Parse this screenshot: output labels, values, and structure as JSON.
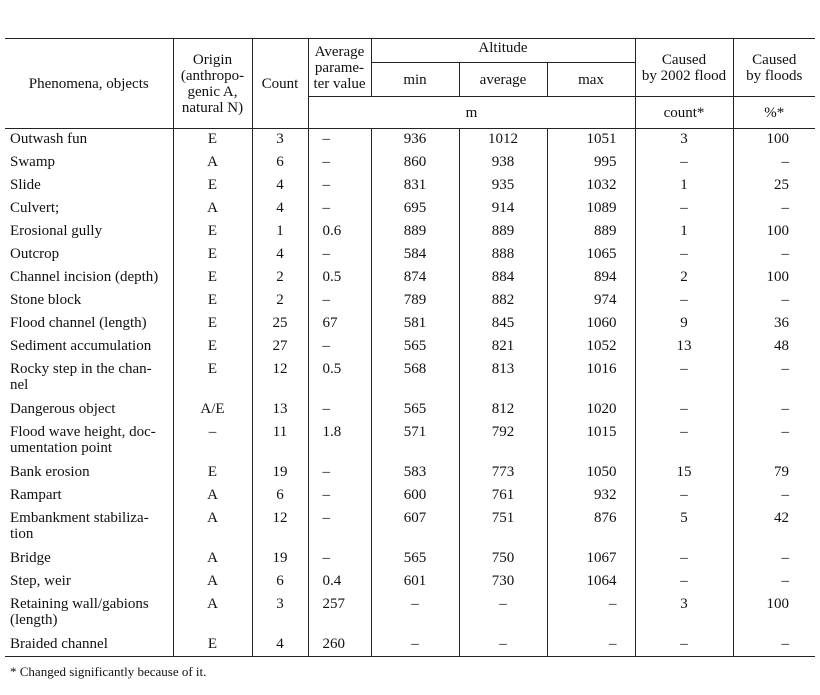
{
  "table": {
    "header": {
      "phenomena": "Phenomena, objects",
      "origin": "Origin\n(anthropo-\ngenic A,\nnatural N)",
      "count": "Count",
      "average_param": "Average\nparame-\nter value",
      "altitude": "Altitude",
      "min": "min",
      "average": "average",
      "max": "max",
      "unit_m": "m",
      "caused_2002": "Caused\nby 2002 flood",
      "caused_floods": "Caused\nby floods",
      "unit_count": "count*",
      "unit_percent": "%*"
    },
    "rows": [
      [
        "Outwash fun",
        "E",
        3,
        "–",
        936,
        1012,
        1051,
        3,
        100
      ],
      [
        "Swamp",
        "A",
        6,
        "–",
        860,
        938,
        995,
        "–",
        "–"
      ],
      [
        "Slide",
        "E",
        4,
        "–",
        831,
        935,
        1032,
        1,
        25
      ],
      [
        "Culvert;",
        "A",
        4,
        "–",
        695,
        914,
        1089,
        "–",
        "–"
      ],
      [
        "Erosional gully",
        "E",
        1,
        0.6,
        889,
        889,
        889,
        1,
        100
      ],
      [
        "Outcrop",
        "E",
        4,
        "–",
        584,
        888,
        1065,
        "–",
        "–"
      ],
      [
        "Channel incision (depth)",
        "E",
        2,
        0.5,
        874,
        884,
        894,
        2,
        100
      ],
      [
        "Stone block",
        "E",
        2,
        "–",
        789,
        882,
        974,
        "–",
        "–"
      ],
      [
        "Flood channel (length)",
        "E",
        25,
        67,
        581,
        845,
        1060,
        9,
        36
      ],
      [
        "Sediment accumulation",
        "E",
        27,
        "–",
        565,
        821,
        1052,
        13,
        48
      ],
      [
        "Rocky step in the chan-\nnel",
        "E",
        12,
        0.5,
        568,
        813,
        1016,
        "–",
        "–"
      ],
      [
        "Dangerous object",
        "A/E",
        13,
        "–",
        565,
        812,
        1020,
        "–",
        "–"
      ],
      [
        "Flood wave height, doc-\numentation point",
        "–",
        11,
        1.8,
        571,
        792,
        1015,
        "–",
        "–"
      ],
      [
        "Bank erosion",
        "E",
        19,
        "–",
        583,
        773,
        1050,
        15,
        79
      ],
      [
        "Rampart",
        "A",
        6,
        "–",
        600,
        761,
        932,
        "–",
        "–"
      ],
      [
        "Embankment stabiliza-\ntion",
        "A",
        12,
        "–",
        607,
        751,
        876,
        5,
        42
      ],
      [
        "Bridge",
        "A",
        19,
        "–",
        565,
        750,
        1067,
        "–",
        "–"
      ],
      [
        "Step, weir",
        "A",
        6,
        0.4,
        601,
        730,
        1064,
        "–",
        "–"
      ],
      [
        "Retaining wall/gabions\n(length)",
        "A",
        3,
        257,
        "–",
        "–",
        "–",
        3,
        100
      ],
      [
        "Braided channel",
        "E",
        4,
        260,
        "–",
        "–",
        "–",
        "–",
        "–"
      ]
    ],
    "footnote": "* Changed significantly because of it."
  }
}
